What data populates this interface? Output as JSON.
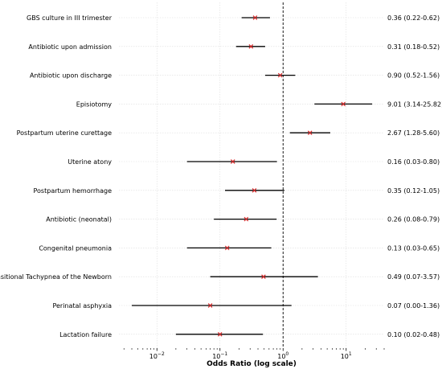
{
  "chart_data": {
    "type": "forest",
    "xlabel": "Odds Ratio (log scale)",
    "xscale": "log",
    "xlim": [
      0.0025,
      40
    ],
    "reference_line": 1,
    "grid": true,
    "colors": {
      "point": "#d62728",
      "ci": "#000000",
      "grid": "#dddddd",
      "ref": "#000000"
    },
    "x_tick_labels": [
      {
        "base": "10",
        "exp": "−2",
        "value": 0.01
      },
      {
        "base": "10",
        "exp": "−1",
        "value": 0.1
      },
      {
        "base": "10",
        "exp": "0",
        "value": 1
      },
      {
        "base": "10",
        "exp": "1",
        "value": 10
      }
    ],
    "rows": [
      {
        "label": "GBS culture in III trimester",
        "or": 0.36,
        "lo": 0.22,
        "hi": 0.62,
        "text": "0.36 (0.22-0.62)"
      },
      {
        "label": "Antibiotic upon admission",
        "or": 0.31,
        "lo": 0.18,
        "hi": 0.52,
        "text": "0.31 (0.18-0.52)"
      },
      {
        "label": "Antibiotic upon discharge",
        "or": 0.9,
        "lo": 0.52,
        "hi": 1.56,
        "text": "0.90 (0.52-1.56)"
      },
      {
        "label": "Episiotomy",
        "or": 9.01,
        "lo": 3.14,
        "hi": 25.82,
        "text": "9.01 (3.14-25.82)"
      },
      {
        "label": "Postpartum uterine curettage",
        "or": 2.67,
        "lo": 1.28,
        "hi": 5.6,
        "text": "2.67 (1.28-5.60)"
      },
      {
        "label": "Uterine atony",
        "or": 0.16,
        "lo": 0.03,
        "hi": 0.8,
        "text": "0.16 (0.03-0.80)"
      },
      {
        "label": "Postpartum hemorrhage",
        "or": 0.35,
        "lo": 0.12,
        "hi": 1.05,
        "text": "0.35 (0.12-1.05)"
      },
      {
        "label": "Antibiotic (neonatal)",
        "or": 0.26,
        "lo": 0.08,
        "hi": 0.79,
        "text": "0.26 (0.08-0.79)"
      },
      {
        "label": "Congenital pneumonia",
        "or": 0.13,
        "lo": 0.03,
        "hi": 0.65,
        "text": "0.13 (0.03-0.65)"
      },
      {
        "label": "Tansitional Tachypnea of the Newborn",
        "or": 0.49,
        "lo": 0.07,
        "hi": 3.57,
        "text": "0.49 (0.07-3.57)"
      },
      {
        "label": "Perinatal asphyxia",
        "or": 0.07,
        "lo": 0.004,
        "hi": 1.36,
        "text": "0.07 (0.00-1.36)"
      },
      {
        "label": "Lactation failure",
        "or": 0.1,
        "lo": 0.02,
        "hi": 0.48,
        "text": "0.10 (0.02-0.48)"
      }
    ]
  }
}
